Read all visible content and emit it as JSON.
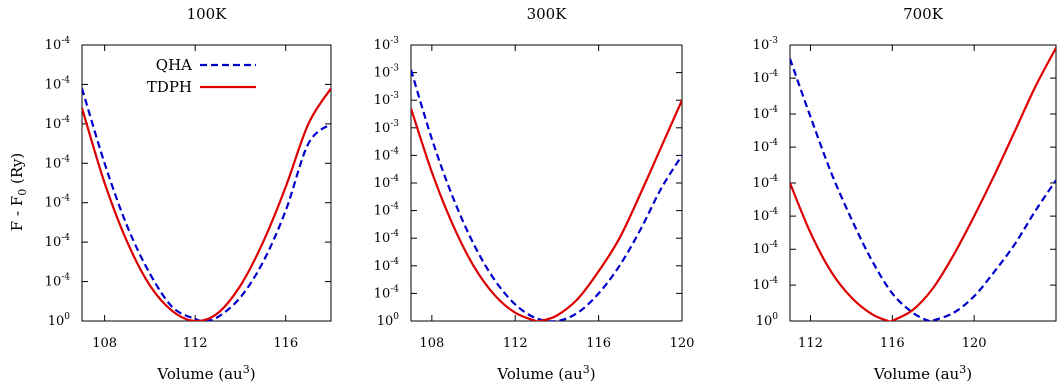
{
  "figure": {
    "ylabel_prefix": "F - F",
    "ylabel_sub": "0",
    "ylabel_suffix": " (Ry)",
    "xlabel_prefix": "Volume (au",
    "xlabel_sup": "3",
    "xlabel_suffix": ")",
    "tick_base": "10",
    "legend": {
      "qha": "QHA",
      "tdph": "TDPH"
    }
  },
  "colors": {
    "qha": "#0000cc",
    "tdph": "#dd0000",
    "axis": "#000000"
  },
  "chart_data": [
    {
      "type": "line",
      "title": "100K",
      "xlim": [
        107,
        118
      ],
      "ylim": [
        0,
        7
      ],
      "x_ticks": [
        "108",
        "112",
        "116"
      ],
      "y_ticks": [
        {
          "v": 0,
          "exp": "0"
        },
        {
          "v": 1,
          "exp": "-4"
        },
        {
          "v": 2,
          "exp": "-4"
        },
        {
          "v": 3,
          "exp": "-4"
        },
        {
          "v": 4,
          "exp": "-4"
        },
        {
          "v": 5,
          "exp": "-4"
        },
        {
          "v": 6,
          "exp": "-4"
        },
        {
          "v": 7,
          "exp": "-4"
        }
      ],
      "legend": true,
      "legend_position": "top-left",
      "series": [
        {
          "name": "QHA",
          "style": "dashed",
          "color": "qha",
          "x": [
            107,
            108,
            109,
            110,
            111,
            112,
            112.4,
            113,
            114,
            115,
            116,
            117,
            118
          ],
          "y": [
            5.9,
            4.0,
            2.4,
            1.2,
            0.35,
            0.05,
            0.0,
            0.1,
            0.6,
            1.5,
            2.8,
            4.5,
            5.0
          ]
        },
        {
          "name": "TDPH",
          "style": "solid",
          "color": "tdph",
          "x": [
            107,
            108,
            109,
            110,
            111,
            112,
            113,
            114,
            115,
            116,
            117,
            118
          ],
          "y": [
            5.4,
            3.5,
            2.0,
            0.9,
            0.25,
            0.0,
            0.2,
            0.9,
            2.0,
            3.4,
            5.0,
            5.9
          ]
        }
      ]
    },
    {
      "type": "line",
      "title": "300K",
      "xlim": [
        107,
        120
      ],
      "ylim": [
        0,
        10
      ],
      "x_ticks": [
        "108",
        "112",
        "116",
        "120"
      ],
      "y_ticks": [
        {
          "v": 0,
          "exp": "0"
        },
        {
          "v": 1,
          "exp": "-4"
        },
        {
          "v": 2,
          "exp": "-4"
        },
        {
          "v": 3,
          "exp": "-4"
        },
        {
          "v": 4,
          "exp": "-4"
        },
        {
          "v": 5,
          "exp": "-4"
        },
        {
          "v": 6,
          "exp": "-4"
        },
        {
          "v": 7,
          "exp": "-3"
        },
        {
          "v": 8,
          "exp": "-3"
        },
        {
          "v": 9,
          "exp": "-3"
        },
        {
          "v": 10,
          "exp": "-3"
        }
      ],
      "legend": false,
      "series": [
        {
          "name": "QHA",
          "style": "dashed",
          "color": "qha",
          "x": [
            107,
            108,
            109,
            110,
            111,
            112,
            113,
            114,
            115,
            116,
            117,
            118,
            119,
            120
          ],
          "y": [
            9.1,
            6.6,
            4.5,
            2.8,
            1.5,
            0.6,
            0.1,
            0.0,
            0.3,
            1.0,
            2.0,
            3.3,
            4.8,
            6.0
          ]
        },
        {
          "name": "TDPH",
          "style": "solid",
          "color": "tdph",
          "x": [
            107,
            108,
            109,
            110,
            111,
            112,
            113,
            113.2,
            114,
            115,
            116,
            117,
            118,
            119,
            120
          ],
          "y": [
            7.7,
            5.4,
            3.5,
            2.0,
            0.95,
            0.3,
            0.0,
            0.0,
            0.2,
            0.8,
            1.8,
            3.0,
            4.6,
            6.3,
            8.0
          ]
        }
      ]
    },
    {
      "type": "line",
      "title": "700K",
      "xlim": [
        111,
        124
      ],
      "ylim": [
        0,
        10
      ],
      "x_ticks": [
        "112",
        "116",
        "120"
      ],
      "y_ticks": [
        {
          "v": 0,
          "exp": "0"
        },
        {
          "v": 1.3,
          "exp": "-4"
        },
        {
          "v": 2.6,
          "exp": "-4"
        },
        {
          "v": 3.8,
          "exp": "-4"
        },
        {
          "v": 5.0,
          "exp": "-4"
        },
        {
          "v": 6.3,
          "exp": "-4"
        },
        {
          "v": 7.5,
          "exp": "-4"
        },
        {
          "v": 8.8,
          "exp": "-4"
        },
        {
          "v": 10,
          "exp": "-3"
        }
      ],
      "legend": false,
      "series": [
        {
          "name": "QHA",
          "style": "dashed",
          "color": "qha",
          "x": [
            111,
            112,
            113,
            114,
            115,
            116,
            117,
            117.8,
            118,
            119,
            120,
            121,
            122,
            123,
            124
          ],
          "y": [
            9.5,
            7.4,
            5.4,
            3.7,
            2.2,
            1.0,
            0.3,
            0.0,
            0.02,
            0.3,
            0.9,
            1.8,
            2.8,
            4.0,
            5.1
          ]
        },
        {
          "name": "TDPH",
          "style": "solid",
          "color": "tdph",
          "x": [
            111,
            112,
            113,
            114,
            115,
            115.8,
            116,
            117,
            118,
            119,
            120,
            121,
            122,
            123,
            124
          ],
          "y": [
            5.0,
            3.2,
            1.8,
            0.85,
            0.25,
            0.0,
            0.01,
            0.4,
            1.2,
            2.4,
            3.8,
            5.3,
            6.9,
            8.5,
            9.9
          ]
        }
      ]
    }
  ]
}
